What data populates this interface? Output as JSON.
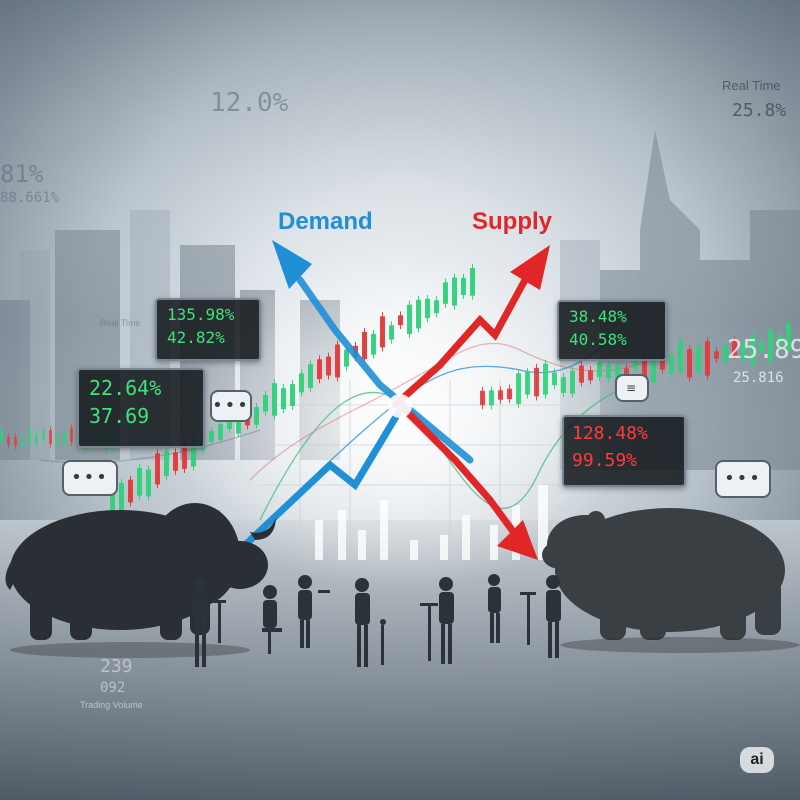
{
  "labels": {
    "demand": "Demand",
    "supply": "Supply"
  },
  "colors": {
    "demand": "#1f8fd6",
    "supply": "#e02626",
    "up_candle": "#2fd17a",
    "down_candle": "#e23a3a",
    "panel_green": "#3ee37a",
    "panel_red": "#ff3b3b"
  },
  "panels": {
    "left_large": {
      "line1": "22.64%",
      "line2": "37.69"
    },
    "left_small": {
      "line1": "135.98%",
      "line2": "42.82%"
    },
    "right_green": {
      "line1": "38.48%",
      "line2": "40.58%"
    },
    "right_red": {
      "line1": "128.48%",
      "line2": "99.59%"
    }
  },
  "background_text": {
    "top_center": "12.0%",
    "top_right_title": "Real Time",
    "top_right_value": "25.8%",
    "left_value1": "81%",
    "left_value2": "88.661%",
    "left_small_label": "Real Time",
    "right_value1": "25.89",
    "right_value2": "25.816",
    "bottom_left_value1": "239",
    "bottom_left_value2": "092",
    "bottom_left_label": "Trading Volume"
  },
  "watermark": "ai",
  "icons": [
    "chat-bubble-icon",
    "bull-figure",
    "bear-figure",
    "demand-arrow",
    "supply-arrow"
  ]
}
